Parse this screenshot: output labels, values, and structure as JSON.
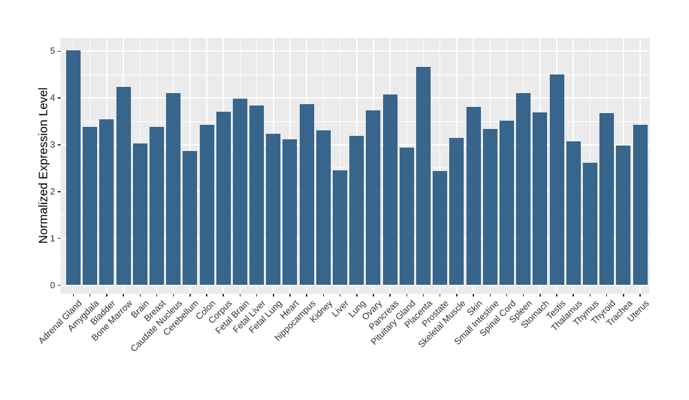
{
  "chart_data": {
    "type": "bar",
    "title": "",
    "xlabel": "",
    "ylabel": "Normalized Expression Level",
    "categories": [
      "Adrenal Gland",
      "Amygdala",
      "Bladder",
      "Bone Marrow",
      "Brain",
      "Breast",
      "Caudate Nucleus",
      "Cerebellum",
      "Colon",
      "Corpus",
      "Fetal Brain",
      "Fetal Liver",
      "Fetal Lung",
      "Heart",
      "hippocampus",
      "Kidney",
      "Liver",
      "Lung",
      "Ovary",
      "Pancreas",
      "Pituitary Gland",
      "Placenta",
      "Prostate",
      "Skeletal Muscle",
      "Skin",
      "Small Intestine",
      "Spinal Cord",
      "Spleen",
      "Stomach",
      "Testis",
      "Thalamus",
      "Thymus",
      "Thyroid",
      "Trachea",
      "Uterus"
    ],
    "values": [
      5.02,
      3.39,
      3.55,
      4.24,
      3.03,
      3.38,
      4.11,
      2.87,
      3.42,
      3.7,
      3.98,
      3.84,
      3.24,
      3.12,
      3.87,
      3.31,
      2.46,
      3.19,
      3.74,
      4.08,
      2.94,
      4.67,
      2.44,
      3.15,
      3.81,
      3.34,
      3.52,
      4.1,
      3.69,
      4.5,
      3.08,
      2.62,
      3.68,
      2.98,
      3.42
    ],
    "ylim": [
      -0.18,
      5.29
    ],
    "yticks": [
      0,
      1,
      2,
      3,
      4,
      5
    ],
    "y_minor_ticks": [
      0.5,
      1.5,
      2.5,
      3.5,
      4.5
    ],
    "x_tick_angle": 45,
    "legend": "none",
    "grid": "white major and minor horizontal gridlines, white vertical gridline at each category center, gray panel",
    "colors": {
      "bar": "#38658C",
      "panel_background": "#EBEBEB",
      "figure_background": "#FFFFFF",
      "gridline": "#FFFFFF",
      "axis_text": "#303030",
      "axis_title": "#000000",
      "tick_mark": "#333333"
    }
  }
}
